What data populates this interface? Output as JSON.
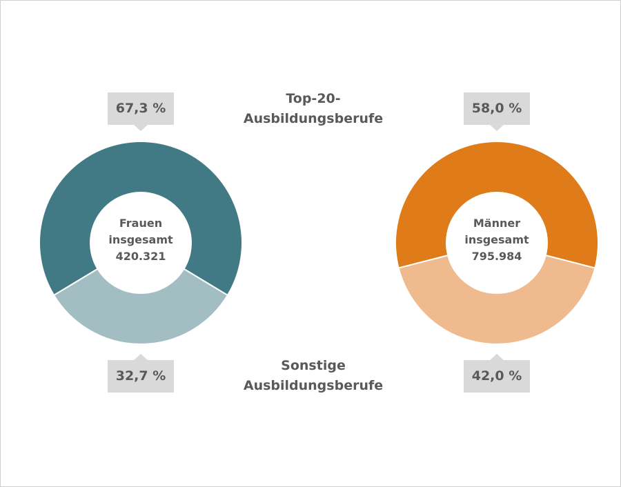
{
  "chart_data": [
    {
      "type": "donut",
      "categories": [
        "Top-20-Ausbildungsberufe",
        "Sonstige Ausbildungsberufe"
      ],
      "center_label": "Frauen insgesamt",
      "total": "420.321",
      "values": [
        67.3,
        32.7
      ],
      "value_labels": [
        "67,3 %",
        "32,7 %"
      ],
      "colors": [
        "#417a85",
        "#a2bec3"
      ]
    },
    {
      "type": "donut",
      "center_label": "Männer insgesamt",
      "total": "795.984",
      "values": [
        58.0,
        42.0
      ],
      "value_labels": [
        "58,0 %",
        "42,0 %"
      ],
      "colors": [
        "#e07b1a",
        "#efbb8e"
      ]
    }
  ]
}
